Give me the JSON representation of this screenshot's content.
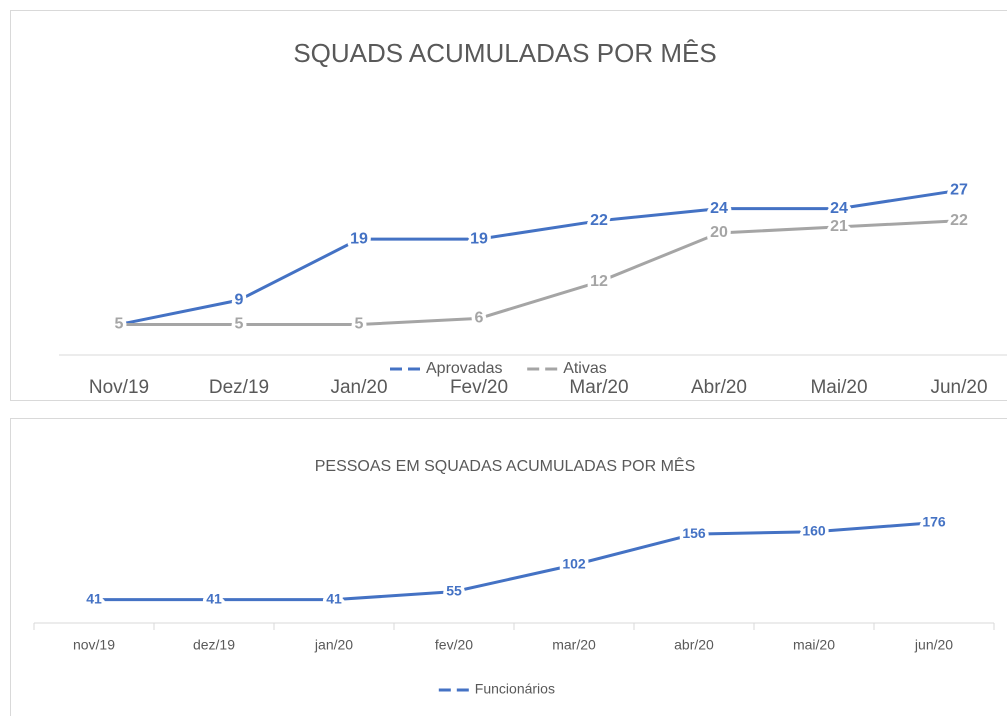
{
  "chart_data": [
    {
      "type": "line",
      "title": "SQUADS ACUMULADAS POR MÊS",
      "categories": [
        "Nov/19",
        "Dez/19",
        "Jan/20",
        "Fev/20",
        "Mar/20",
        "Abr/20",
        "Mai/20",
        "Jun/20"
      ],
      "ylim": [
        0,
        30
      ],
      "legend": "bottom",
      "series": [
        {
          "name": "Aprovadas",
          "color": "#4472c4",
          "values": [
            5,
            9,
            19,
            19,
            22,
            24,
            24,
            27
          ]
        },
        {
          "name": "Ativas",
          "color": "#a5a5a5",
          "values": [
            5,
            5,
            5,
            6,
            12,
            20,
            21,
            22
          ]
        }
      ]
    },
    {
      "type": "line",
      "title": "PESSOAS EM SQUADAS ACUMULADAS POR MÊS",
      "categories": [
        "nov/19",
        "dez/19",
        "jan/20",
        "fev/20",
        "mar/20",
        "abr/20",
        "mai/20",
        "jun/20"
      ],
      "ylim": [
        0,
        200
      ],
      "legend": "bottom",
      "series": [
        {
          "name": "Funcionários",
          "color": "#4472c4",
          "values": [
            41,
            41,
            41,
            55,
            102,
            156,
            160,
            176
          ]
        }
      ]
    }
  ]
}
